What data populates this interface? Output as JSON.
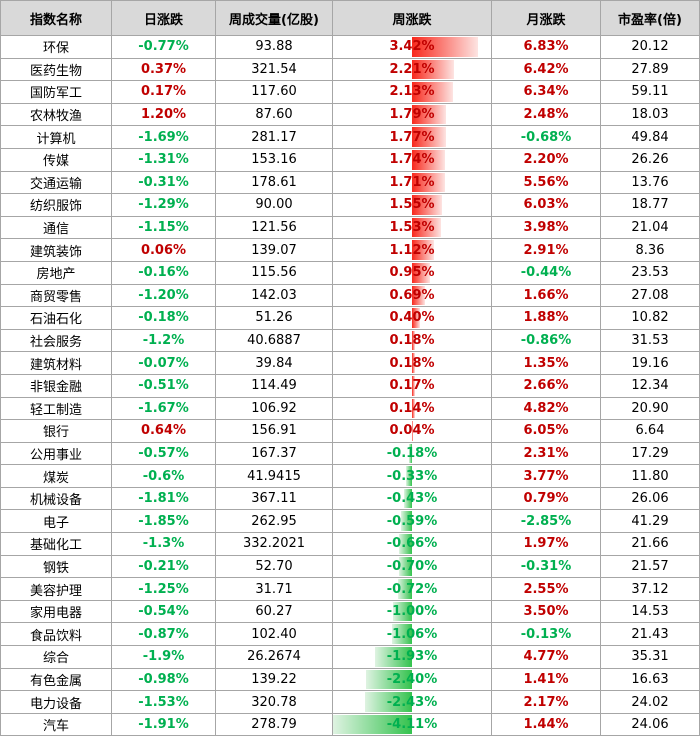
{
  "headers": [
    "指数名称",
    "日涨跌",
    "周成交量(亿股)",
    "周涨跌",
    "月涨跌",
    "市盈率(倍)"
  ],
  "rows": [
    {
      "name": "环保",
      "day": "-0.77%",
      "vol": "93.88",
      "week": "3.42%",
      "week_value": 3.42,
      "month": "6.83%",
      "pe": "20.12"
    },
    {
      "name": "医药生物",
      "day": "0.37%",
      "vol": "321.54",
      "week": "2.21%",
      "week_value": 2.21,
      "month": "6.42%",
      "pe": "27.89"
    },
    {
      "name": "国防军工",
      "day": "0.17%",
      "vol": "117.60",
      "week": "2.13%",
      "week_value": 2.13,
      "month": "6.34%",
      "pe": "59.11"
    },
    {
      "name": "农林牧渔",
      "day": "1.20%",
      "vol": "87.60",
      "week": "1.79%",
      "week_value": 1.79,
      "month": "2.48%",
      "pe": "18.03"
    },
    {
      "name": "计算机",
      "day": "-1.69%",
      "vol": "281.17",
      "week": "1.77%",
      "week_value": 1.77,
      "month": "-0.68%",
      "pe": "49.84"
    },
    {
      "name": "传媒",
      "day": "-1.31%",
      "vol": "153.16",
      "week": "1.74%",
      "week_value": 1.74,
      "month": "2.20%",
      "pe": "26.26"
    },
    {
      "name": "交通运输",
      "day": "-0.31%",
      "vol": "178.61",
      "week": "1.71%",
      "week_value": 1.71,
      "month": "5.56%",
      "pe": "13.76"
    },
    {
      "name": "纺织服饰",
      "day": "-1.29%",
      "vol": "90.00",
      "week": "1.55%",
      "week_value": 1.55,
      "month": "6.03%",
      "pe": "18.77"
    },
    {
      "name": "通信",
      "day": "-1.15%",
      "vol": "121.56",
      "week": "1.53%",
      "week_value": 1.53,
      "month": "3.98%",
      "pe": "21.04"
    },
    {
      "name": "建筑装饰",
      "day": "0.06%",
      "vol": "139.07",
      "week": "1.12%",
      "week_value": 1.12,
      "month": "2.91%",
      "pe": "8.36"
    },
    {
      "name": "房地产",
      "day": "-0.16%",
      "vol": "115.56",
      "week": "0.95%",
      "week_value": 0.95,
      "month": "-0.44%",
      "pe": "23.53"
    },
    {
      "name": "商贸零售",
      "day": "-1.20%",
      "vol": "142.03",
      "week": "0.69%",
      "week_value": 0.69,
      "month": "1.66%",
      "pe": "27.08"
    },
    {
      "name": "石油石化",
      "day": "-0.18%",
      "vol": "51.26",
      "week": "0.40%",
      "week_value": 0.4,
      "month": "1.88%",
      "pe": "10.82"
    },
    {
      "name": "社会服务",
      "day": "-1.2%",
      "vol": "40.6887",
      "week": "0.18%",
      "week_value": 0.18,
      "month": "-0.86%",
      "pe": "31.53"
    },
    {
      "name": "建筑材料",
      "day": "-0.07%",
      "vol": "39.84",
      "week": "0.18%",
      "week_value": 0.18,
      "month": "1.35%",
      "pe": "19.16"
    },
    {
      "name": "非银金融",
      "day": "-0.51%",
      "vol": "114.49",
      "week": "0.17%",
      "week_value": 0.17,
      "month": "2.66%",
      "pe": "12.34"
    },
    {
      "name": "轻工制造",
      "day": "-1.67%",
      "vol": "106.92",
      "week": "0.14%",
      "week_value": 0.14,
      "month": "4.82%",
      "pe": "20.90"
    },
    {
      "name": "银行",
      "day": "0.64%",
      "vol": "156.91",
      "week": "0.04%",
      "week_value": 0.04,
      "month": "6.05%",
      "pe": "6.64"
    },
    {
      "name": "公用事业",
      "day": "-0.57%",
      "vol": "167.37",
      "week": "-0.18%",
      "week_value": -0.18,
      "month": "2.31%",
      "pe": "17.29"
    },
    {
      "name": "煤炭",
      "day": "-0.6%",
      "vol": "41.9415",
      "week": "-0.33%",
      "week_value": -0.33,
      "month": "3.77%",
      "pe": "11.80"
    },
    {
      "name": "机械设备",
      "day": "-1.81%",
      "vol": "367.11",
      "week": "-0.43%",
      "week_value": -0.43,
      "month": "0.79%",
      "pe": "26.06"
    },
    {
      "name": "电子",
      "day": "-1.85%",
      "vol": "262.95",
      "week": "-0.59%",
      "week_value": -0.59,
      "month": "-2.85%",
      "pe": "41.29"
    },
    {
      "name": "基础化工",
      "day": "-1.3%",
      "vol": "332.2021",
      "week": "-0.66%",
      "week_value": -0.66,
      "month": "1.97%",
      "pe": "21.66"
    },
    {
      "name": "钢铁",
      "day": "-0.21%",
      "vol": "52.70",
      "week": "-0.70%",
      "week_value": -0.7,
      "month": "-0.31%",
      "pe": "21.57"
    },
    {
      "name": "美容护理",
      "day": "-1.25%",
      "vol": "31.71",
      "week": "-0.72%",
      "week_value": -0.72,
      "month": "2.55%",
      "pe": "37.12"
    },
    {
      "name": "家用电器",
      "day": "-0.54%",
      "vol": "60.27",
      "week": "-1.00%",
      "week_value": -1.0,
      "month": "3.50%",
      "pe": "14.53"
    },
    {
      "name": "食品饮料",
      "day": "-0.87%",
      "vol": "102.40",
      "week": "-1.06%",
      "week_value": -1.06,
      "month": "-0.13%",
      "pe": "21.43"
    },
    {
      "name": "综合",
      "day": "-1.9%",
      "vol": "26.2674",
      "week": "-1.93%",
      "week_value": -1.93,
      "month": "4.77%",
      "pe": "35.31"
    },
    {
      "name": "有色金属",
      "day": "-0.98%",
      "vol": "139.22",
      "week": "-2.40%",
      "week_value": -2.4,
      "month": "1.41%",
      "pe": "16.63"
    },
    {
      "name": "电力设备",
      "day": "-1.53%",
      "vol": "320.78",
      "week": "-2.43%",
      "week_value": -2.43,
      "month": "2.17%",
      "pe": "24.02"
    },
    {
      "name": "汽车",
      "day": "-1.91%",
      "vol": "278.79",
      "week": "-4.11%",
      "week_value": -4.11,
      "month": "1.44%",
      "pe": "24.06"
    }
  ],
  "colors": {
    "up": "#c00000",
    "down": "#00b050",
    "bar_up": "#f8281c",
    "bar_down": "#33c24d",
    "header_bg": "#d9d9d9"
  }
}
